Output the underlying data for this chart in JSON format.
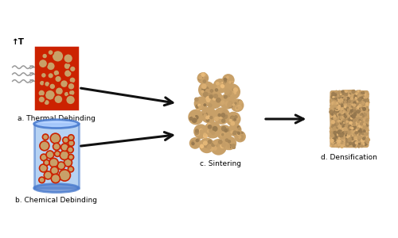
{
  "bg_color": "#ffffff",
  "particle_fill": "#c8a068",
  "particle_edge": "#cc2200",
  "sintering_fill": "#c8a068",
  "densification_fill": "#c8a068",
  "beaker_body_color": "#7aaee8",
  "beaker_edge_color": "#4477cc",
  "beaker_alpha": 0.55,
  "label_a": "a. Thermal Debinding",
  "label_b": "b. Chemical Debinding",
  "label_c": "c. Sintering",
  "label_d": "d. Densification",
  "label_fontsize": 6.5,
  "arrow_color": "#111111",
  "heat_line_color": "#999999",
  "temp_label": "↑T",
  "figsize": [
    5.0,
    3.0
  ],
  "dpi": 100,
  "xlim": [
    0,
    10
  ],
  "ylim": [
    0,
    6
  ]
}
